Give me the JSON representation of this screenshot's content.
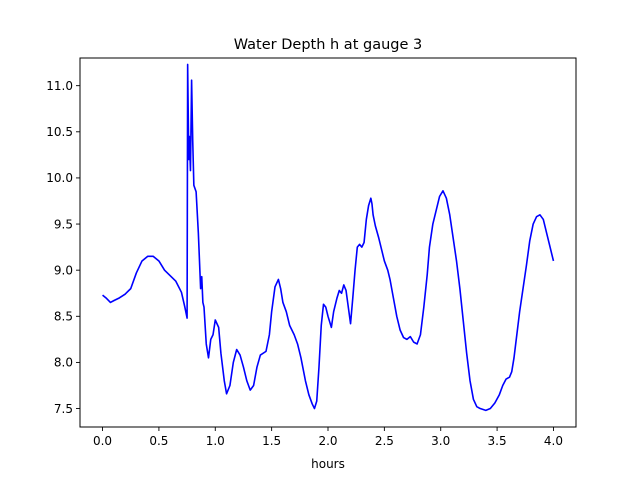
{
  "chart_data": {
    "type": "line",
    "title": "Water Depth h at gauge 3",
    "xlabel": "hours",
    "ylabel": "",
    "xlim": [
      -0.2,
      4.2
    ],
    "ylim": [
      7.3,
      11.3
    ],
    "x_ticks": [
      0.0,
      0.5,
      1.0,
      1.5,
      2.0,
      2.5,
      3.0,
      3.5,
      4.0
    ],
    "x_tick_labels": [
      "0.0",
      "0.5",
      "1.0",
      "1.5",
      "2.0",
      "2.5",
      "3.0",
      "3.5",
      "4.0"
    ],
    "y_ticks": [
      7.5,
      8.0,
      8.5,
      9.0,
      9.5,
      10.0,
      10.5,
      11.0
    ],
    "y_tick_labels": [
      "7.5",
      "8.0",
      "8.5",
      "9.0",
      "9.5",
      "10.0",
      "10.5",
      "11.0"
    ],
    "grid": false,
    "legend": "none",
    "series": [
      {
        "color": "#0000ff",
        "points": [
          [
            0.0,
            8.73
          ],
          [
            0.03,
            8.7
          ],
          [
            0.07,
            8.65
          ],
          [
            0.1,
            8.67
          ],
          [
            0.15,
            8.7
          ],
          [
            0.2,
            8.74
          ],
          [
            0.25,
            8.8
          ],
          [
            0.3,
            8.97
          ],
          [
            0.35,
            9.1
          ],
          [
            0.4,
            9.15
          ],
          [
            0.45,
            9.15
          ],
          [
            0.5,
            9.1
          ],
          [
            0.55,
            9.0
          ],
          [
            0.6,
            8.94
          ],
          [
            0.65,
            8.88
          ],
          [
            0.7,
            8.76
          ],
          [
            0.73,
            8.6
          ],
          [
            0.75,
            8.48
          ],
          [
            0.755,
            11.23
          ],
          [
            0.765,
            10.2
          ],
          [
            0.77,
            10.45
          ],
          [
            0.78,
            10.08
          ],
          [
            0.79,
            11.06
          ],
          [
            0.8,
            10.4
          ],
          [
            0.81,
            9.92
          ],
          [
            0.83,
            9.85
          ],
          [
            0.85,
            9.4
          ],
          [
            0.87,
            8.8
          ],
          [
            0.88,
            8.93
          ],
          [
            0.89,
            8.65
          ],
          [
            0.9,
            8.6
          ],
          [
            0.92,
            8.2
          ],
          [
            0.94,
            8.05
          ],
          [
            0.96,
            8.25
          ],
          [
            0.98,
            8.3
          ],
          [
            1.0,
            8.46
          ],
          [
            1.03,
            8.38
          ],
          [
            1.05,
            8.1
          ],
          [
            1.08,
            7.8
          ],
          [
            1.1,
            7.66
          ],
          [
            1.13,
            7.75
          ],
          [
            1.16,
            8.0
          ],
          [
            1.19,
            8.14
          ],
          [
            1.22,
            8.08
          ],
          [
            1.25,
            7.95
          ],
          [
            1.28,
            7.8
          ],
          [
            1.31,
            7.7
          ],
          [
            1.34,
            7.75
          ],
          [
            1.37,
            7.95
          ],
          [
            1.4,
            8.08
          ],
          [
            1.45,
            8.12
          ],
          [
            1.48,
            8.3
          ],
          [
            1.5,
            8.55
          ],
          [
            1.53,
            8.82
          ],
          [
            1.56,
            8.9
          ],
          [
            1.58,
            8.8
          ],
          [
            1.6,
            8.65
          ],
          [
            1.63,
            8.55
          ],
          [
            1.66,
            8.4
          ],
          [
            1.7,
            8.3
          ],
          [
            1.73,
            8.2
          ],
          [
            1.76,
            8.05
          ],
          [
            1.8,
            7.8
          ],
          [
            1.83,
            7.65
          ],
          [
            1.86,
            7.55
          ],
          [
            1.88,
            7.5
          ],
          [
            1.9,
            7.58
          ],
          [
            1.92,
            7.95
          ],
          [
            1.94,
            8.4
          ],
          [
            1.96,
            8.63
          ],
          [
            1.98,
            8.6
          ],
          [
            2.0,
            8.5
          ],
          [
            2.03,
            8.38
          ],
          [
            2.05,
            8.55
          ],
          [
            2.08,
            8.7
          ],
          [
            2.1,
            8.78
          ],
          [
            2.12,
            8.75
          ],
          [
            2.14,
            8.84
          ],
          [
            2.16,
            8.78
          ],
          [
            2.18,
            8.6
          ],
          [
            2.2,
            8.42
          ],
          [
            2.22,
            8.7
          ],
          [
            2.24,
            9.0
          ],
          [
            2.26,
            9.25
          ],
          [
            2.28,
            9.28
          ],
          [
            2.3,
            9.25
          ],
          [
            2.32,
            9.3
          ],
          [
            2.34,
            9.55
          ],
          [
            2.36,
            9.7
          ],
          [
            2.38,
            9.78
          ],
          [
            2.39,
            9.72
          ],
          [
            2.4,
            9.6
          ],
          [
            2.42,
            9.48
          ],
          [
            2.45,
            9.35
          ],
          [
            2.48,
            9.2
          ],
          [
            2.5,
            9.1
          ],
          [
            2.53,
            9.0
          ],
          [
            2.55,
            8.9
          ],
          [
            2.58,
            8.7
          ],
          [
            2.61,
            8.5
          ],
          [
            2.64,
            8.35
          ],
          [
            2.67,
            8.27
          ],
          [
            2.7,
            8.25
          ],
          [
            2.73,
            8.28
          ],
          [
            2.76,
            8.22
          ],
          [
            2.79,
            8.2
          ],
          [
            2.82,
            8.3
          ],
          [
            2.85,
            8.6
          ],
          [
            2.88,
            8.95
          ],
          [
            2.9,
            9.25
          ],
          [
            2.93,
            9.5
          ],
          [
            2.96,
            9.65
          ],
          [
            2.99,
            9.8
          ],
          [
            3.02,
            9.86
          ],
          [
            3.05,
            9.78
          ],
          [
            3.08,
            9.6
          ],
          [
            3.11,
            9.35
          ],
          [
            3.14,
            9.1
          ],
          [
            3.17,
            8.8
          ],
          [
            3.2,
            8.45
          ],
          [
            3.23,
            8.1
          ],
          [
            3.26,
            7.8
          ],
          [
            3.29,
            7.6
          ],
          [
            3.32,
            7.52
          ],
          [
            3.35,
            7.5
          ],
          [
            3.4,
            7.48
          ],
          [
            3.44,
            7.5
          ],
          [
            3.48,
            7.56
          ],
          [
            3.52,
            7.65
          ],
          [
            3.55,
            7.75
          ],
          [
            3.58,
            7.82
          ],
          [
            3.61,
            7.84
          ],
          [
            3.63,
            7.9
          ],
          [
            3.65,
            8.05
          ],
          [
            3.67,
            8.25
          ],
          [
            3.7,
            8.55
          ],
          [
            3.73,
            8.8
          ],
          [
            3.76,
            9.05
          ],
          [
            3.79,
            9.32
          ],
          [
            3.82,
            9.5
          ],
          [
            3.85,
            9.58
          ],
          [
            3.88,
            9.6
          ],
          [
            3.91,
            9.55
          ],
          [
            3.94,
            9.4
          ],
          [
            3.97,
            9.25
          ],
          [
            4.0,
            9.1
          ]
        ]
      }
    ]
  }
}
